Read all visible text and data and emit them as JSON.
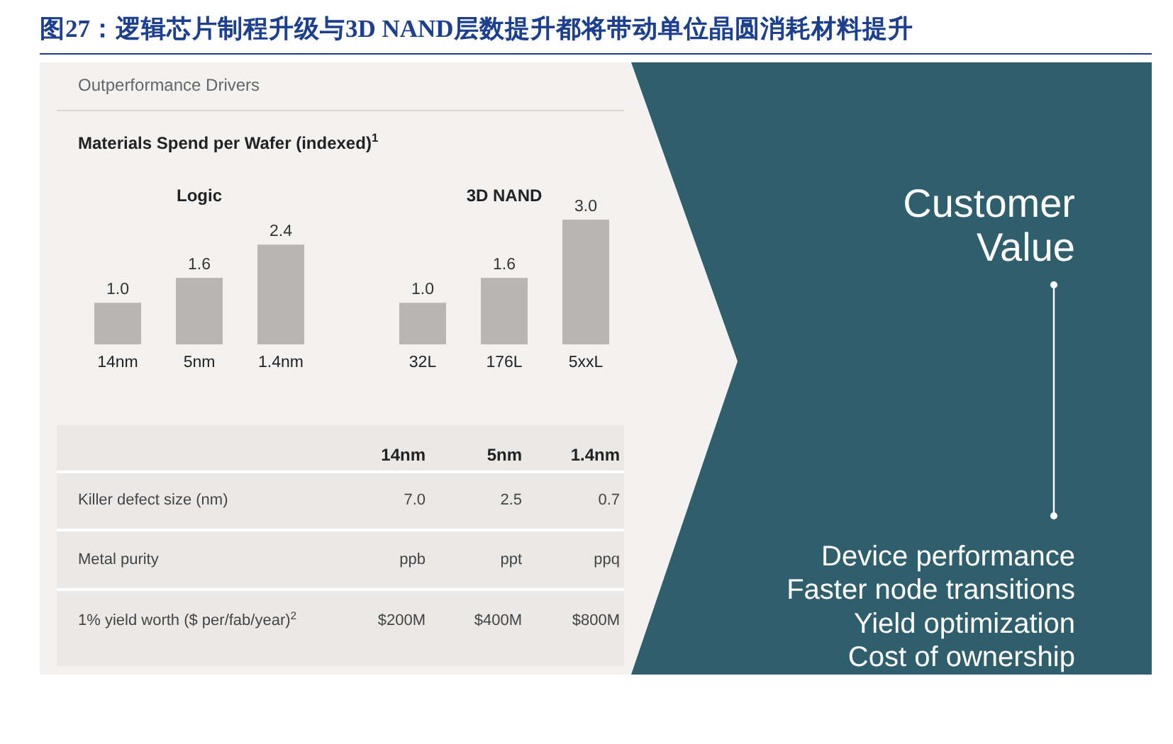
{
  "chart_data": [
    {
      "type": "other",
      "title": "图27：逻辑芯片制程升级与3D NAND层数提升都将带动单位晶圆消耗材料提升",
      "subtitle": "Outperformance Drivers",
      "annotations": [
        "Materials Spend per Wafer (indexed)$^{1}$"
      ]
    },
    {
      "type": "bar",
      "title": "Logic",
      "categories": [
        "14nm",
        "5nm",
        "1.4nm"
      ],
      "values": [
        1.0,
        1.6,
        2.4
      ],
      "value_labels": [
        "1.0",
        "1.6",
        "2.4"
      ],
      "color": "#b8b5b2"
    },
    {
      "type": "bar",
      "title": "3D NAND",
      "categories": [
        "32L",
        "176L",
        "5xxL"
      ],
      "values": [
        1.0,
        1.6,
        3.0
      ],
      "value_labels": [
        "1.0",
        "1.6",
        "3.0"
      ],
      "color": "#b8b5b2"
    },
    {
      "type": "other",
      "categories": [
        "14nm",
        "5nm",
        "1.4nm"
      ],
      "y_categories": [
        "Killer defect size (nm)",
        "Metal purity",
        "1% yield worth ($ per/fab/year)$^{2}$"
      ],
      "cell_labels": [
        [
          "7.0",
          "2.5",
          "0.7"
        ],
        [
          "ppb",
          "ppt",
          "ppq"
        ],
        [
          "$200M",
          "$400M",
          "$800M"
        ]
      ]
    },
    {
      "type": "other",
      "title": "Customer Value",
      "annotations": [
        "Device performance",
        "Faster node transitions",
        "Yield optimization",
        "Cost of ownership"
      ]
    }
  ]
}
